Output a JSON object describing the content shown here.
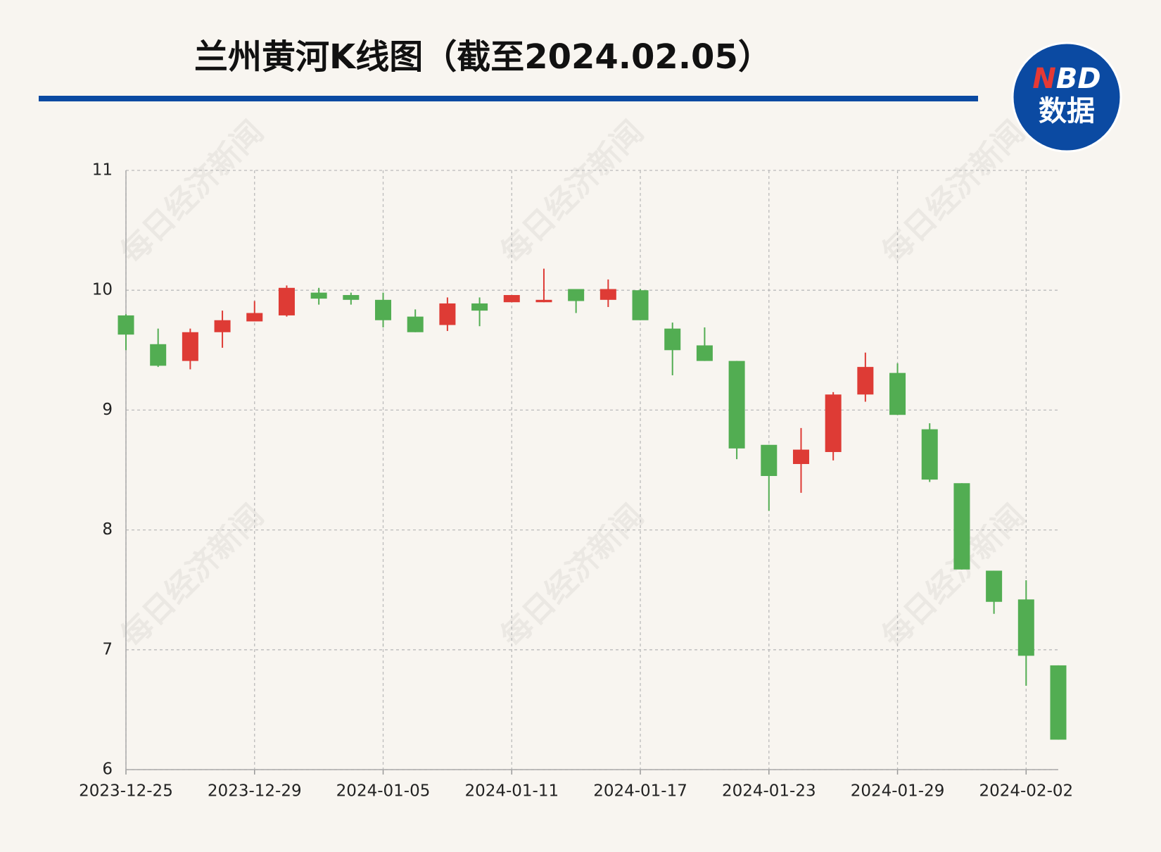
{
  "chart_data": {
    "type": "candlestick",
    "title": "兰州黄河K线图（截至2024.02.05）",
    "categories": [
      "2023-12-25",
      null,
      null,
      null,
      "2023-12-29",
      null,
      null,
      null,
      "2024-01-05",
      null,
      null,
      null,
      "2024-01-11",
      null,
      null,
      null,
      "2024-01-17",
      null,
      null,
      null,
      "2024-01-23",
      null,
      null,
      null,
      "2024-01-29",
      null,
      null,
      null,
      "2024-02-02",
      null
    ],
    "open": [
      9.79,
      9.55,
      9.41,
      9.65,
      9.74,
      9.79,
      9.98,
      9.96,
      9.92,
      9.78,
      9.71,
      9.89,
      9.9,
      9.9,
      10.01,
      9.92,
      10.0,
      9.68,
      9.54,
      9.41,
      8.71,
      8.55,
      8.65,
      9.13,
      9.31,
      8.84,
      8.39,
      7.66,
      7.42,
      6.87
    ],
    "high": [
      9.8,
      9.68,
      9.68,
      9.83,
      9.91,
      10.04,
      10.02,
      9.98,
      9.98,
      9.84,
      9.94,
      9.94,
      9.96,
      10.18,
      10.01,
      10.09,
      10.01,
      9.73,
      9.69,
      9.41,
      8.71,
      8.85,
      9.15,
      9.48,
      9.39,
      8.89,
      8.39,
      7.66,
      7.58,
      6.87
    ],
    "low": [
      9.5,
      9.36,
      9.34,
      9.52,
      9.74,
      9.78,
      9.88,
      9.88,
      9.69,
      9.65,
      9.66,
      9.7,
      9.9,
      9.9,
      9.81,
      9.86,
      9.75,
      9.29,
      9.41,
      8.59,
      8.16,
      8.31,
      8.58,
      9.07,
      8.96,
      8.4,
      7.67,
      7.3,
      6.7,
      6.25
    ],
    "close": [
      9.63,
      9.37,
      9.65,
      9.75,
      9.81,
      10.02,
      9.93,
      9.92,
      9.75,
      9.65,
      9.89,
      9.83,
      9.96,
      9.92,
      9.91,
      10.01,
      9.75,
      9.5,
      9.41,
      8.68,
      8.45,
      8.67,
      9.13,
      9.36,
      8.96,
      8.42,
      7.67,
      7.4,
      6.95,
      6.25
    ],
    "up_color": "#de3b35",
    "down_color": "#52ad52",
    "ylim": [
      6,
      11
    ],
    "yticks": [
      6,
      7,
      8,
      9,
      10,
      11
    ],
    "grid": true
  },
  "logo": {
    "n": "N",
    "bd": "BD",
    "sub": "数据"
  },
  "watermark": "每日经济新闻"
}
